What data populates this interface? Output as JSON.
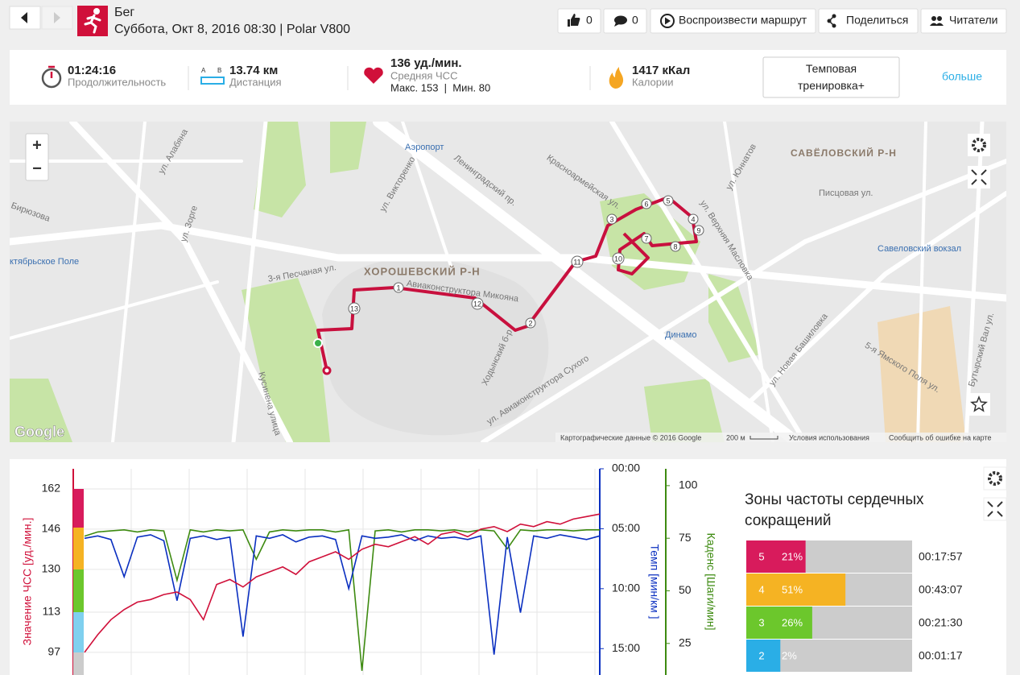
{
  "header": {
    "title": "Бег",
    "subtitle": "Суббота, Окт 8, 2016 08:30 | Polar V800",
    "likes": "0",
    "comments": "0",
    "replay": "Воспроизвести маршрут",
    "share": "Поделиться",
    "followers": "Читатели"
  },
  "summary": {
    "duration": "01:24:16",
    "duration_label": "Продолжительность",
    "distance": "13.74 км",
    "distance_label": "Дистанция",
    "hr": "136 уд./мин.",
    "hr_label": "Средняя ЧСС",
    "hr_minmax": "Макс. 153  |  Мин. 80",
    "calories": "1417 кКал",
    "calories_label": "Калории",
    "training": "Темповая тренировка+",
    "more": "больше"
  },
  "map": {
    "labels": [
      "ХОРОШЕВСКИЙ Р-Н",
      "САВЁЛОВСКИЙ Р-Н",
      "Аэропорт",
      "Динамо",
      "Савеловский вокзал",
      "ктябрьское Поле",
      "Ленинградский пр.",
      "ул. Викторенко",
      "3-я Песчаная ул.",
      "Ходынский б-р",
      "ул. Авиаконструктора Сухого",
      "ул. Новая Башиловка",
      "ул. Верхняя Масловка",
      "ул. Зорге",
      "Кусинена улица",
      "ул. Алабяна",
      "Писцовая ул.",
      "Бирюзова",
      "ул. Юннатов",
      "Красноармейская ул.",
      "5-я Ямского Поля ул.",
      "Бутырский Вал ул.",
      "Авиаконструктора Микояна"
    ],
    "route_points": [
      "1",
      "2",
      "3",
      "4",
      "5",
      "6",
      "7",
      "8",
      "9",
      "10",
      "11",
      "12",
      "13"
    ],
    "zoom_in": "+",
    "zoom_out": "−",
    "logo": "Google",
    "copyright": "Картографические данные © 2016 Google",
    "scale": "200 м",
    "terms": "Условия использования",
    "report": "Сообщить об ошибке на карте"
  },
  "chart_data": {
    "type": "line",
    "ylabel": "Значение ЧСС [уд./мин.]",
    "y2label": "Темп [мин/км ]",
    "y3label": "Каденс [Шаги/мин]",
    "ylim": [
      88,
      170
    ],
    "yticks": [
      97,
      113,
      130,
      146,
      162
    ],
    "y2lim": [
      0,
      17.2
    ],
    "y2ticks": [
      {
        "value": 0,
        "label": "00:00"
      },
      {
        "value": 5,
        "label": "05:00"
      },
      {
        "value": 10,
        "label": "10:00"
      },
      {
        "value": 15,
        "label": "15:00"
      }
    ],
    "y3lim": [
      10,
      108
    ],
    "y3ticks": [
      25,
      50,
      75,
      100
    ],
    "grid": true,
    "series": [
      {
        "color": "#d0103a",
        "axis": "y",
        "values": [
          97,
          104,
          110,
          114,
          117,
          118,
          120,
          121,
          118,
          110,
          124,
          126,
          123,
          127,
          129,
          131,
          128,
          133,
          135,
          137,
          134,
          138,
          140,
          139,
          141,
          143,
          140,
          144,
          145,
          143,
          146,
          147,
          145,
          148,
          147,
          149,
          148,
          150,
          151,
          152
        ]
      },
      {
        "color": "#0a2fc0",
        "axis": "y2",
        "values": [
          5.8,
          5.6,
          5.9,
          9,
          5.7,
          5.5,
          6.0,
          11,
          5.8,
          5.6,
          5.9,
          5.7,
          14,
          5.6,
          5.8,
          5.5,
          6.1,
          5.7,
          5.6,
          5.9,
          10,
          5.6,
          5.8,
          5.7,
          5.5,
          6.0,
          5.6,
          5.8,
          5.7,
          5.9,
          5.6,
          15.5,
          5.7,
          12,
          5.6,
          5.8,
          5.5,
          5.7,
          5.9,
          5.6
        ]
      },
      {
        "color": "#3d8a10",
        "axis": "y3",
        "values": [
          76,
          78,
          78.5,
          79,
          78,
          79,
          78.5,
          55,
          79,
          78,
          79,
          78.5,
          79,
          65,
          78,
          79,
          78.5,
          79,
          79,
          78,
          79,
          12,
          78.5,
          79,
          78,
          79,
          79,
          78.5,
          79,
          78,
          79,
          78.5,
          70,
          79,
          78.5,
          79,
          79,
          78.5,
          79,
          79
        ]
      }
    ]
  },
  "zones": {
    "title": "Зоны частоты сердечных сокращений",
    "rows": [
      {
        "zone": "5",
        "percent": 21,
        "percent_label": "21%",
        "time": "00:17:57",
        "color": "#d81b5c"
      },
      {
        "zone": "4",
        "percent": 51,
        "percent_label": "51%",
        "time": "00:43:07",
        "color": "#f5b323"
      },
      {
        "zone": "3",
        "percent": 26,
        "percent_label": "26%",
        "time": "00:21:30",
        "color": "#6cc72c"
      },
      {
        "zone": "2",
        "percent": 2,
        "percent_label": "2%",
        "time": "00:01:17",
        "color": "#2aaee6"
      }
    ]
  }
}
